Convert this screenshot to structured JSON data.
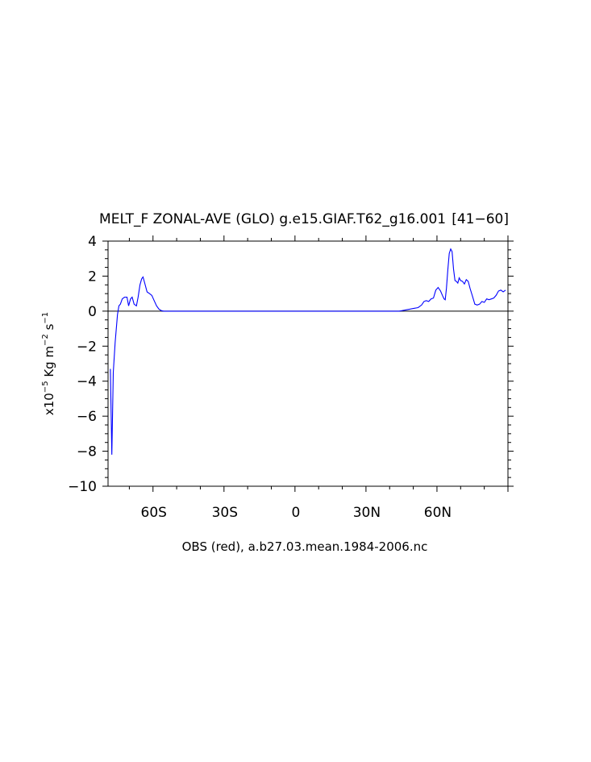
{
  "chart_data": {
    "type": "line",
    "title": "MELT_F ZONAL-AVE (GLO) g.e15.GIAF.T62_g16.001  [41−60]",
    "xlabel": "OBS (red), a.b27.03.mean.1984-2006.nc",
    "ylabel": {
      "prefix": "x10",
      "exp1": "−5",
      "mid": " Kg m",
      "exp2": "−2",
      "mid2": " s",
      "exp3": "−1"
    },
    "xlim": [
      -79,
      90
    ],
    "ylim": [
      -10,
      4
    ],
    "x_ticks": [
      {
        "value": -60,
        "label": "60S"
      },
      {
        "value": -30,
        "label": "30S"
      },
      {
        "value": 0,
        "label": "0"
      },
      {
        "value": 30,
        "label": "30N"
      },
      {
        "value": 60,
        "label": "60N"
      }
    ],
    "y_ticks": [
      {
        "value": 4,
        "label": "4"
      },
      {
        "value": 2,
        "label": "2"
      },
      {
        "value": 0,
        "label": "0"
      },
      {
        "value": -2,
        "label": "−2"
      },
      {
        "value": -4,
        "label": "−4"
      },
      {
        "value": -6,
        "label": "−6"
      },
      {
        "value": -8,
        "label": "−8"
      },
      {
        "value": -10,
        "label": "−10"
      }
    ],
    "grid": false,
    "colors": {
      "model": "#0000ff",
      "obs": "#ff0000",
      "zero": "#000000",
      "axes": "#000000"
    },
    "series": [
      {
        "color": "#0000ff",
        "points": [
          [
            -78,
            -3.3
          ],
          [
            -77.4,
            -8.2
          ],
          [
            -76.8,
            -3.5
          ],
          [
            -76,
            -1.8
          ],
          [
            -75,
            -0.2
          ],
          [
            -74.4,
            0.3
          ],
          [
            -73.8,
            0.4
          ],
          [
            -73,
            0.7
          ],
          [
            -72,
            0.8
          ],
          [
            -71,
            0.8
          ],
          [
            -70.3,
            0.3
          ],
          [
            -69.5,
            0.7
          ],
          [
            -68.8,
            0.8
          ],
          [
            -68,
            0.4
          ],
          [
            -67,
            0.3
          ],
          [
            -66.3,
            0.8
          ],
          [
            -65.5,
            1.5
          ],
          [
            -64.8,
            1.85
          ],
          [
            -64.2,
            1.95
          ],
          [
            -63.5,
            1.6
          ],
          [
            -62.5,
            1.1
          ],
          [
            -61.5,
            1.0
          ],
          [
            -60.5,
            0.9
          ],
          [
            -59.5,
            0.6
          ],
          [
            -58.5,
            0.3
          ],
          [
            -57.5,
            0.12
          ],
          [
            -56.5,
            0.03
          ],
          [
            -55.5,
            0.0
          ],
          [
            44,
            0.0
          ],
          [
            46,
            0.05
          ],
          [
            48,
            0.1
          ],
          [
            50,
            0.15
          ],
          [
            52,
            0.2
          ],
          [
            53.5,
            0.35
          ],
          [
            54.5,
            0.55
          ],
          [
            55.5,
            0.6
          ],
          [
            56.5,
            0.55
          ],
          [
            57.5,
            0.7
          ],
          [
            58.5,
            0.75
          ],
          [
            59.5,
            1.2
          ],
          [
            60.5,
            1.35
          ],
          [
            61.5,
            1.15
          ],
          [
            62.3,
            0.9
          ],
          [
            63,
            0.7
          ],
          [
            63.5,
            0.65
          ],
          [
            64,
            1.3
          ],
          [
            64.6,
            2.4
          ],
          [
            65.2,
            3.3
          ],
          [
            65.8,
            3.55
          ],
          [
            66.4,
            3.4
          ],
          [
            67,
            2.4
          ],
          [
            67.6,
            1.75
          ],
          [
            68.2,
            1.7
          ],
          [
            68.8,
            1.6
          ],
          [
            69.4,
            1.9
          ],
          [
            70,
            1.75
          ],
          [
            70.8,
            1.7
          ],
          [
            71.6,
            1.55
          ],
          [
            72.4,
            1.8
          ],
          [
            73.2,
            1.7
          ],
          [
            74,
            1.3
          ],
          [
            75,
            0.85
          ],
          [
            76,
            0.4
          ],
          [
            77,
            0.35
          ],
          [
            78,
            0.4
          ],
          [
            79,
            0.55
          ],
          [
            80,
            0.5
          ],
          [
            81,
            0.7
          ],
          [
            82,
            0.65
          ],
          [
            83,
            0.7
          ],
          [
            84,
            0.75
          ],
          [
            85,
            0.9
          ],
          [
            86,
            1.15
          ],
          [
            87,
            1.2
          ],
          [
            88,
            1.1
          ],
          [
            89,
            1.2
          ]
        ]
      }
    ]
  }
}
